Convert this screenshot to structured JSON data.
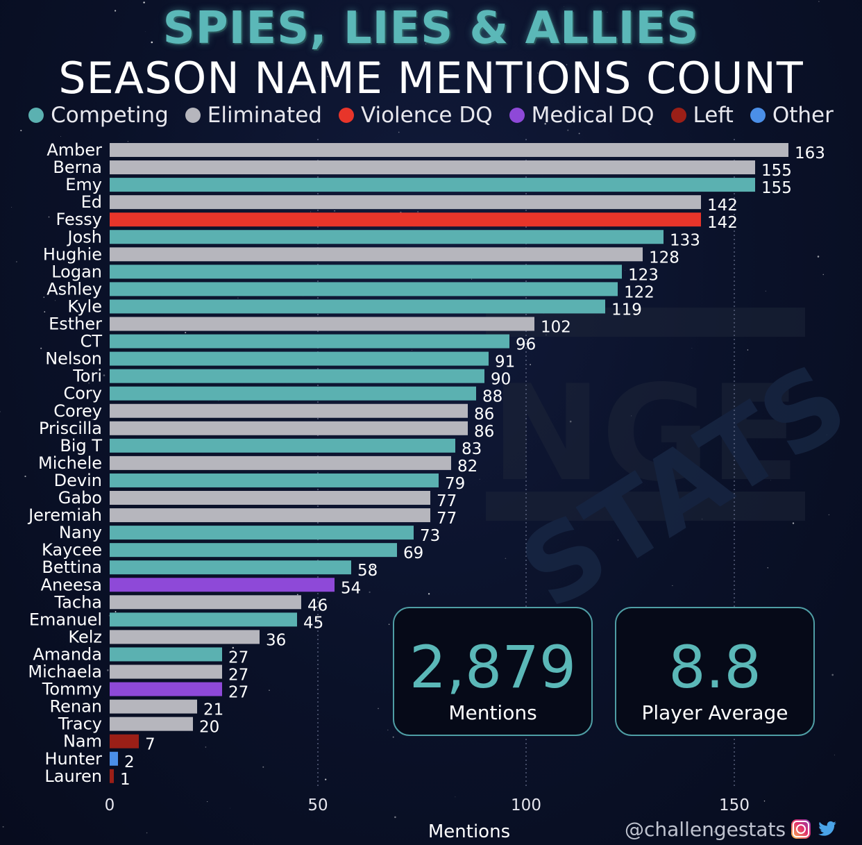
{
  "header": {
    "title": "SPIES, LIES & ALLIES",
    "subtitle": "SEASON NAME MENTIONS COUNT"
  },
  "legend": [
    {
      "label": "Competing",
      "color": "#5bb1b1"
    },
    {
      "label": "Eliminated",
      "color": "#b6b6bd"
    },
    {
      "label": "Violence DQ",
      "color": "#e8352a"
    },
    {
      "label": "Medical DQ",
      "color": "#8e49d8"
    },
    {
      "label": "Left",
      "color": "#9b1f17"
    },
    {
      "label": "Other",
      "color": "#4b8fe8"
    }
  ],
  "stats": {
    "total_value": "2,879",
    "total_label": "Mentions",
    "average_value": "8.8",
    "average_label": "Player Average"
  },
  "footer": {
    "handle": "@challengestats"
  },
  "icons": [
    "instagram-icon",
    "twitter-icon"
  ],
  "chart_data": {
    "type": "bar",
    "orientation": "horizontal",
    "title": "SEASON NAME MENTIONS COUNT",
    "xlabel": "Mentions",
    "ylabel": "",
    "xlim": [
      0,
      163
    ],
    "xticks": [
      0,
      50,
      100,
      150
    ],
    "grid": "vertical dotted",
    "legend_position": "top",
    "categories": [
      "Amber",
      "Berna",
      "Emy",
      "Ed",
      "Fessy",
      "Josh",
      "Hughie",
      "Logan",
      "Ashley",
      "Kyle",
      "Esther",
      "CT",
      "Nelson",
      "Tori",
      "Cory",
      "Corey",
      "Priscilla",
      "Big T",
      "Michele",
      "Devin",
      "Gabo",
      "Jeremiah",
      "Nany",
      "Kaycee",
      "Bettina",
      "Aneesa",
      "Tacha",
      "Emanuel",
      "Kelz",
      "Amanda",
      "Michaela",
      "Tommy",
      "Renan",
      "Tracy",
      "Nam",
      "Hunter",
      "Lauren"
    ],
    "values": [
      163,
      155,
      155,
      142,
      142,
      133,
      128,
      123,
      122,
      119,
      102,
      96,
      91,
      90,
      88,
      86,
      86,
      83,
      82,
      79,
      77,
      77,
      73,
      69,
      58,
      54,
      46,
      45,
      36,
      27,
      27,
      27,
      21,
      20,
      7,
      2,
      1
    ],
    "status": [
      "Eliminated",
      "Eliminated",
      "Competing",
      "Eliminated",
      "Violence DQ",
      "Competing",
      "Eliminated",
      "Competing",
      "Competing",
      "Competing",
      "Eliminated",
      "Competing",
      "Competing",
      "Competing",
      "Competing",
      "Eliminated",
      "Eliminated",
      "Competing",
      "Eliminated",
      "Competing",
      "Eliminated",
      "Eliminated",
      "Competing",
      "Competing",
      "Competing",
      "Medical DQ",
      "Eliminated",
      "Competing",
      "Eliminated",
      "Competing",
      "Eliminated",
      "Medical DQ",
      "Eliminated",
      "Eliminated",
      "Left",
      "Other",
      "Left"
    ]
  }
}
